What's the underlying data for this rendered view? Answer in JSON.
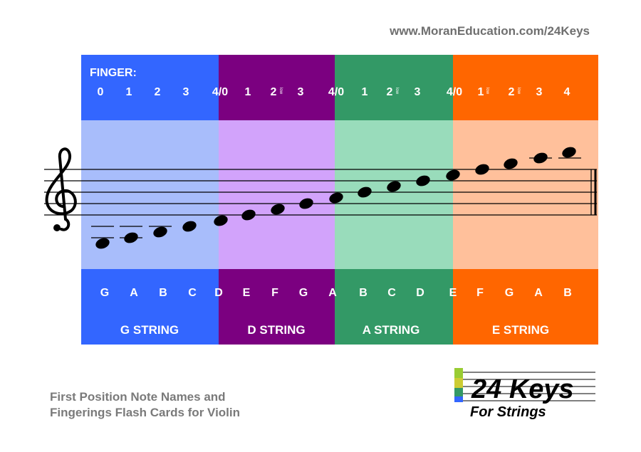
{
  "url": "www.MoranEducation.com/24Keys",
  "finger_label": "FINGER:",
  "colors": {
    "g_string": "#3366ff",
    "d_string": "#7b0080",
    "a_string": "#339966",
    "e_string": "#ff6600",
    "g_light": "#a8bdfb",
    "d_light": "#d2a3fb",
    "a_light": "#99dcbb",
    "e_light": "#ffc09b"
  },
  "strings": [
    {
      "name": "G STRING",
      "fingers": [
        "0",
        "1",
        "2",
        "3"
      ],
      "notes": [
        "G",
        "A",
        "B",
        "C"
      ]
    },
    {
      "name": "D STRING",
      "fingers": [
        "4/0",
        "1",
        "2",
        "3"
      ],
      "notes": [
        "D",
        "E",
        "F",
        "G"
      ]
    },
    {
      "name": "A STRING",
      "fingers": [
        "4/0",
        "1",
        "2",
        "3"
      ],
      "notes": [
        "A",
        "B",
        "C",
        "D"
      ]
    },
    {
      "name": "E STRING",
      "fingers": [
        "4/0",
        "1",
        "2",
        "3",
        "4"
      ],
      "notes": [
        "E",
        "F",
        "G",
        "A",
        "B"
      ]
    }
  ],
  "low_marks": [
    "low",
    "low",
    "low",
    "low"
  ],
  "footer_line1": "First Position Note Names and",
  "footer_line2": "Fingerings Flash Cards for Violin",
  "logo_text": "24 Keys",
  "logo_subtext": "For Strings"
}
